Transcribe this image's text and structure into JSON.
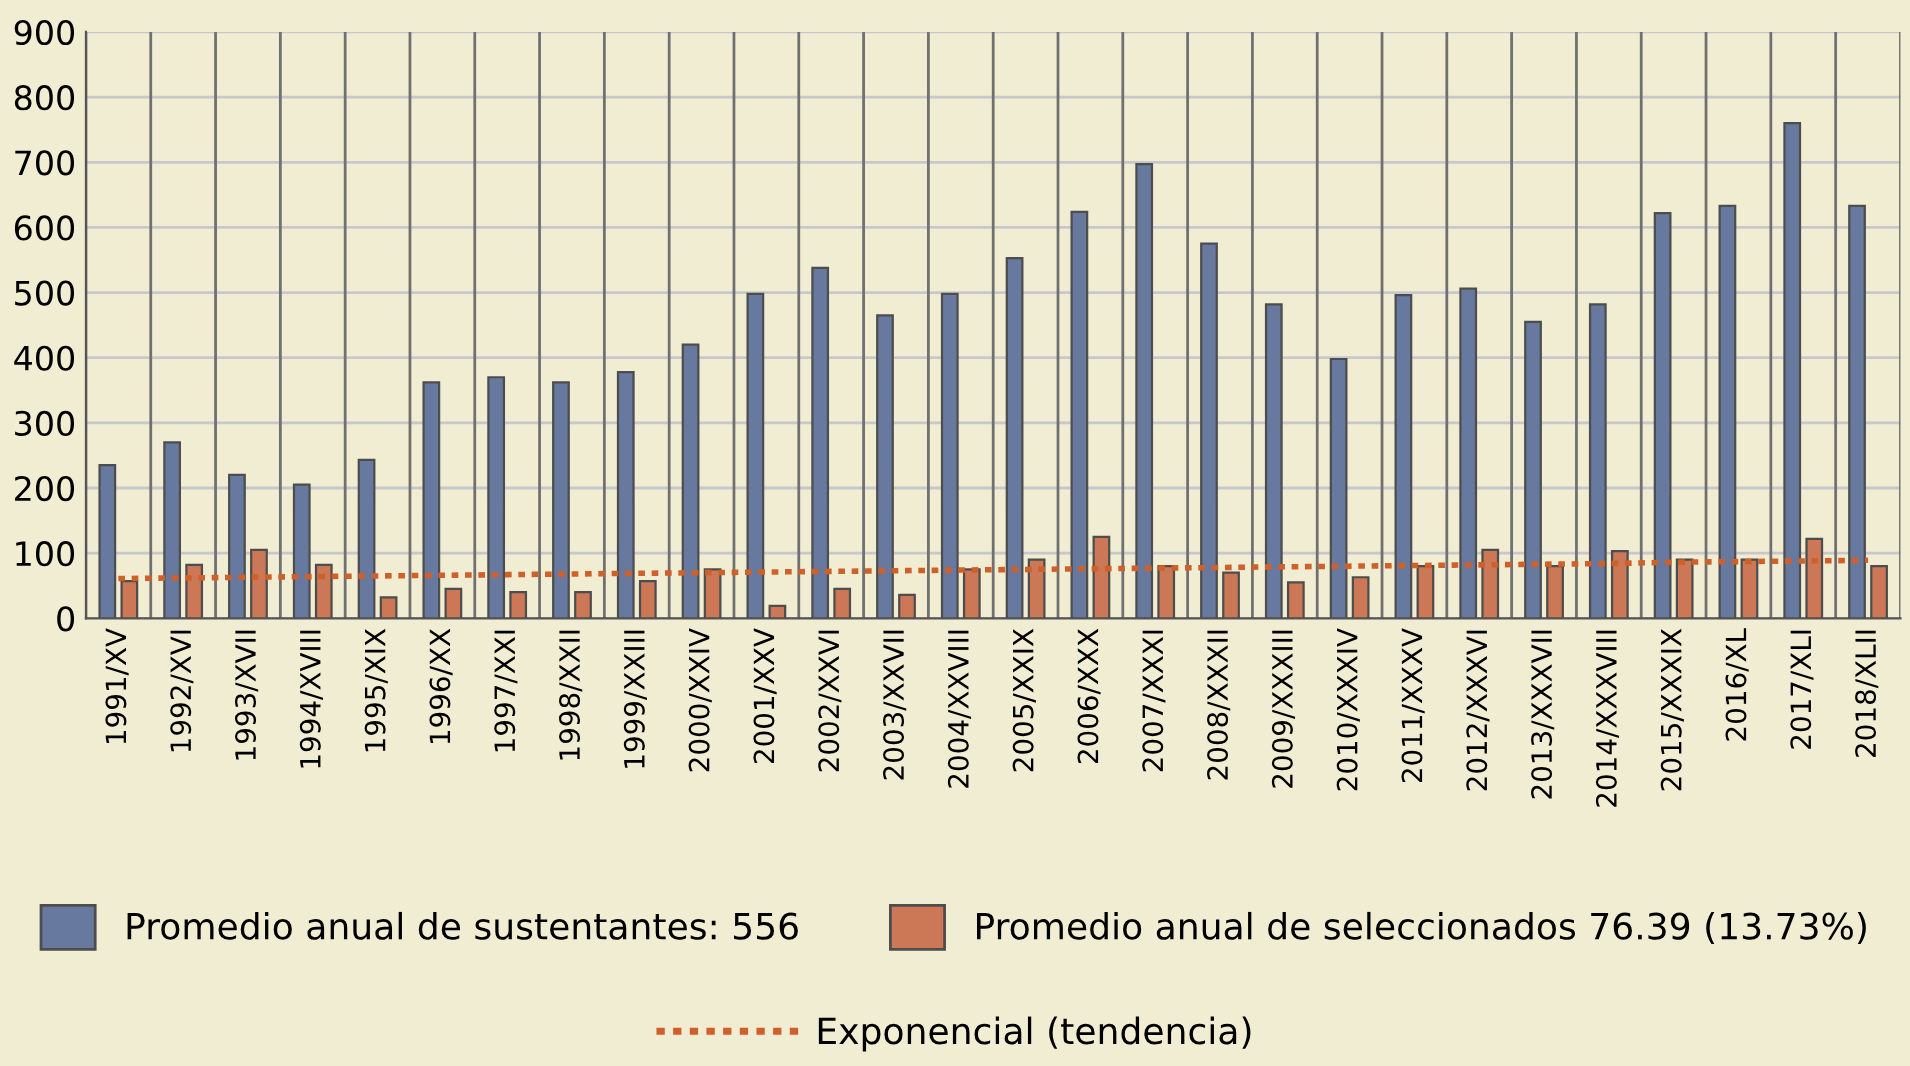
{
  "chart_data": {
    "type": "bar",
    "categories": [
      "1991/XV",
      "1992/XVI",
      "1993/XVII",
      "1994/XVIII",
      "1995/XIX",
      "1996/XX",
      "1997/XXI",
      "1998/XXII",
      "1999/XXIII",
      "2000/XXIV",
      "2001/XXV",
      "2002/XXVI",
      "2003/XXVII",
      "2004/XXVIII",
      "2005/XXIX",
      "2006/XXX",
      "2007/XXXI",
      "2008/XXXII",
      "2009/XXXIII",
      "2010/XXXIV",
      "2011/XXXV",
      "2012/XXXVI",
      "2013/XXXVII",
      "2014/XXXVIII",
      "2015/XXXIX",
      "2016/XL",
      "2017/XLI",
      "2018/XLII"
    ],
    "series": [
      {
        "name": "Promedio anual de sustentantes: 556",
        "color": "#67799f",
        "values": [
          235,
          270,
          220,
          205,
          243,
          362,
          370,
          362,
          378,
          420,
          498,
          538,
          465,
          498,
          553,
          624,
          697,
          575,
          482,
          398,
          496,
          506,
          455,
          482,
          622,
          633,
          760,
          633
        ]
      },
      {
        "name": "Promedio anual de seleccionados 76.39 (13.73%)",
        "color": "#cc7755",
        "values": [
          57,
          82,
          105,
          82,
          32,
          45,
          40,
          40,
          57,
          75,
          19,
          45,
          36,
          75,
          90,
          125,
          80,
          70,
          55,
          63,
          80,
          105,
          80,
          103,
          90,
          90,
          122,
          80
        ]
      },
      {
        "name": "Exponencial (tendencia)",
        "type": "line",
        "color": "#d0602a",
        "line_style": "dotted",
        "values": [
          61,
          62,
          63,
          64,
          65,
          66,
          67,
          68,
          69,
          70,
          71,
          72,
          73,
          74,
          75,
          76,
          77,
          78,
          79,
          80,
          81,
          82,
          83,
          84,
          86,
          87,
          88,
          89
        ]
      }
    ],
    "ylim": [
      0,
      900
    ],
    "yticks": [
      0,
      100,
      200,
      300,
      400,
      500,
      600,
      700,
      800,
      900
    ],
    "grid": true,
    "legend": "bottom"
  }
}
